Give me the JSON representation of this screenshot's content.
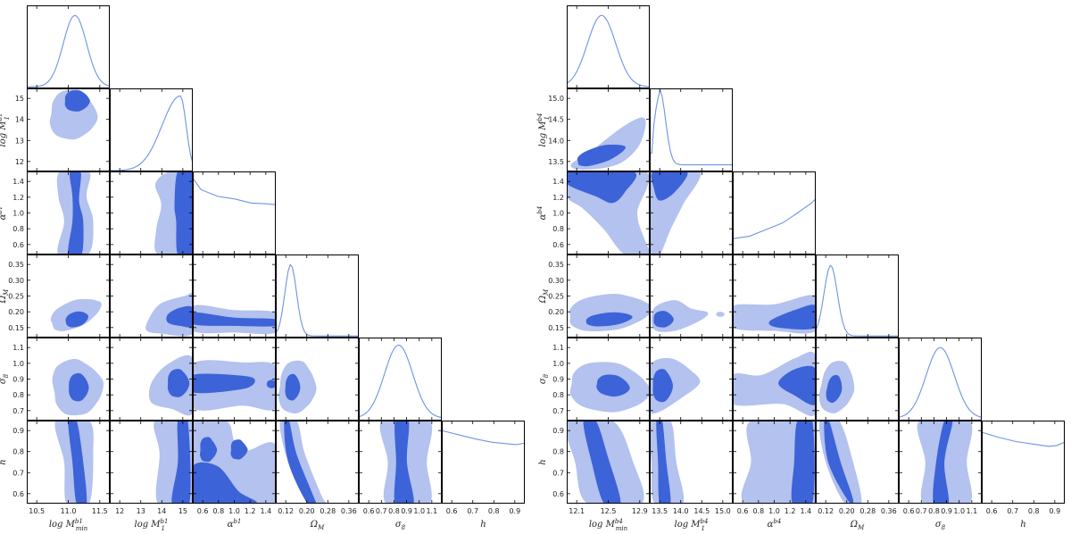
{
  "colors": {
    "contour_outer": "#b3c2ee",
    "contour_inner": "#3d63d8",
    "line": "#6f93e4",
    "axes": "#000000"
  },
  "chart_data": [
    {
      "type": "corner",
      "grid": false,
      "parameters": [
        {
          "key": "logM1min",
          "label_main": "log M",
          "label_sub": "min",
          "label_sup": "b1",
          "ticks": [
            "10.5",
            "11.0",
            "11.5"
          ],
          "range": [
            10.4,
            11.7
          ]
        },
        {
          "key": "logM1",
          "label_main": "log M",
          "label_sub": "1",
          "label_sup": "b1",
          "ticks": [
            "12",
            "13",
            "14",
            "15"
          ],
          "range": [
            11.2,
            15.6
          ]
        },
        {
          "key": "alpha",
          "label_main": "α",
          "label_sub": "",
          "label_sup": "b1",
          "ticks": [
            "0.6",
            "0.8",
            "1.0",
            "1.2",
            "1.4"
          ],
          "range": [
            0.5,
            1.5
          ]
        },
        {
          "key": "OmegaM",
          "label_main": "Ω",
          "label_sub": "M",
          "label_sup": "",
          "ticks": [
            "0.12",
            "0.20",
            "0.28",
            "0.36"
          ],
          "range": [
            0.1,
            0.38
          ]
        },
        {
          "key": "sigma8",
          "label_main": "σ",
          "label_sub": "8",
          "label_sup": "",
          "ticks": [
            "0.6",
            "0.7",
            "0.8",
            "0.9",
            "1.0",
            "1.1"
          ],
          "range": [
            0.6,
            1.15
          ]
        },
        {
          "key": "h",
          "label_main": "h",
          "label_sub": "",
          "label_sup": "",
          "ticks": [
            "0.6",
            "0.7",
            "0.8",
            "0.9"
          ],
          "range": [
            0.5,
            1.0
          ]
        }
      ],
      "y_ticks": {
        "logM1": [
          "12",
          "13",
          "14",
          "15"
        ],
        "alpha": [
          "0.6",
          "0.8",
          "1.0",
          "1.2",
          "1.4"
        ],
        "OmegaM": [
          "0.15",
          "0.20",
          "0.25",
          "0.30",
          "0.35"
        ],
        "sigma8": [
          "0.7",
          "0.8",
          "0.9",
          "1.0",
          "1.1"
        ],
        "h": [
          "0.6",
          "0.7",
          "0.8",
          "0.9"
        ]
      },
      "diagonal_peaks": {
        "logM1min": 11.1,
        "logM1": 15.0,
        "alpha": "flat (decreasing)",
        "OmegaM": 0.15,
        "sigma8": 0.82,
        "h": "flat"
      }
    },
    {
      "type": "corner",
      "grid": false,
      "parameters": [
        {
          "key": "logM4min",
          "label_main": "log M",
          "label_sub": "min",
          "label_sup": "b4",
          "ticks": [
            "12.1",
            "12.5",
            "12.9"
          ],
          "range": [
            11.95,
            13.15
          ]
        },
        {
          "key": "logM4",
          "label_main": "log M",
          "label_sub": "1",
          "label_sup": "b4",
          "ticks": [
            "13.5",
            "14.0",
            "14.5",
            "15.0"
          ],
          "range": [
            13.1,
            15.5
          ]
        },
        {
          "key": "alpha",
          "label_main": "α",
          "label_sub": "",
          "label_sup": "b4",
          "ticks": [
            "0.6",
            "0.8",
            "1.0",
            "1.2",
            "1.4"
          ],
          "range": [
            0.5,
            1.5
          ]
        },
        {
          "key": "OmegaM",
          "label_main": "Ω",
          "label_sub": "M",
          "label_sup": "",
          "ticks": [
            "0.12",
            "0.20",
            "0.28",
            "0.36"
          ],
          "range": [
            0.1,
            0.38
          ]
        },
        {
          "key": "sigma8",
          "label_main": "σ",
          "label_sub": "8",
          "label_sup": "",
          "ticks": [
            "0.6",
            "0.7",
            "0.8",
            "0.9",
            "1.0",
            "1.1"
          ],
          "range": [
            0.6,
            1.15
          ]
        },
        {
          "key": "h",
          "label_main": "h",
          "label_sub": "",
          "label_sup": "",
          "ticks": [
            "0.6",
            "0.7",
            "0.8",
            "0.9"
          ],
          "range": [
            0.5,
            1.0
          ]
        }
      ],
      "y_ticks": {
        "logM4": [
          "13.5",
          "14.0",
          "14.5",
          "15.0"
        ],
        "alpha": [
          "0.6",
          "0.8",
          "1.0",
          "1.2",
          "1.4"
        ],
        "OmegaM": [
          "0.15",
          "0.20",
          "0.25",
          "0.30",
          "0.35"
        ],
        "sigma8": [
          "0.7",
          "0.8",
          "0.9",
          "1.0",
          "1.1"
        ],
        "h": [
          "0.6",
          "0.7",
          "0.8",
          "0.9"
        ]
      },
      "diagonal_peaks": {
        "logM4min": 12.5,
        "logM4": 13.45,
        "alpha": "increasing toward 1.5",
        "OmegaM": 0.15,
        "sigma8": 0.83,
        "h": "flat"
      }
    }
  ]
}
